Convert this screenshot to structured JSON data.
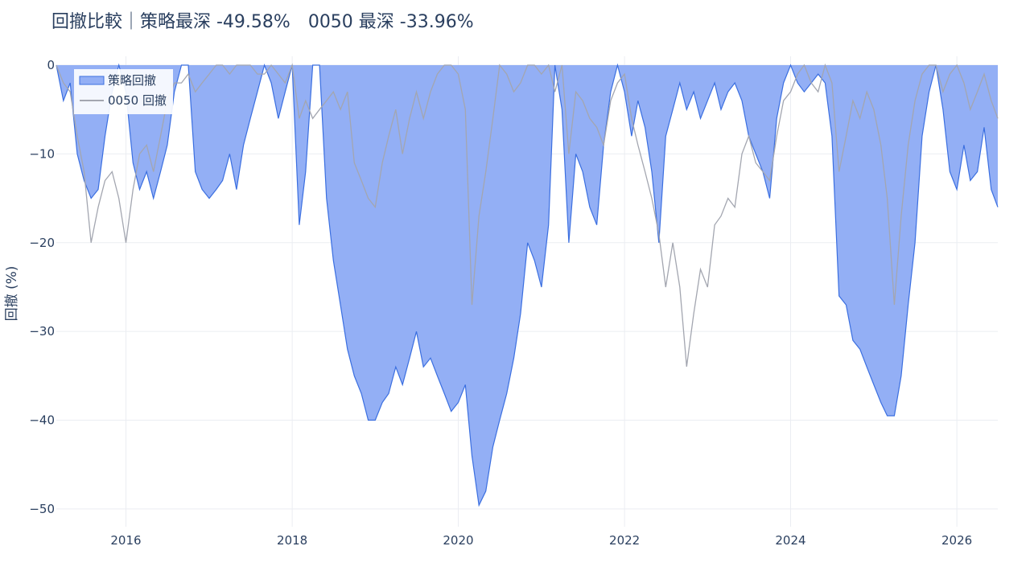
{
  "chart_data": {
    "type": "area",
    "title": "回撤比較｜策略最深 -49.58%　0050 最深 -33.96%",
    "xlabel": "",
    "ylabel": "回撤 (%)",
    "xlim": [
      "2015-03-01",
      "2026-06-30"
    ],
    "ylim": [
      -52,
      1
    ],
    "x_ticks": [
      "2016",
      "2018",
      "2020",
      "2022",
      "2024",
      "2026"
    ],
    "y_ticks": [
      0,
      -10,
      -20,
      -30,
      -40,
      -50
    ],
    "y_tick_labels": [
      "0",
      "−10",
      "−20",
      "−30",
      "−40",
      "−50"
    ],
    "grid": true,
    "legend_position": "top-left",
    "series": [
      {
        "name": "策略回撤",
        "style": "area",
        "color": "#3b6fe0",
        "fill": "#93aff5",
        "points": [
          [
            "2015-03-01",
            0
          ],
          [
            "2015-04-01",
            -4
          ],
          [
            "2015-05-01",
            -2
          ],
          [
            "2015-06-01",
            -10
          ],
          [
            "2015-07-01",
            -13
          ],
          [
            "2015-08-01",
            -15
          ],
          [
            "2015-09-01",
            -14
          ],
          [
            "2015-10-01",
            -8
          ],
          [
            "2015-11-01",
            -3
          ],
          [
            "2015-12-01",
            0
          ],
          [
            "2016-01-01",
            -3
          ],
          [
            "2016-02-01",
            -11
          ],
          [
            "2016-03-01",
            -14
          ],
          [
            "2016-04-01",
            -12
          ],
          [
            "2016-05-01",
            -15
          ],
          [
            "2016-06-01",
            -12
          ],
          [
            "2016-07-01",
            -9
          ],
          [
            "2016-08-01",
            -3
          ],
          [
            "2016-09-01",
            0
          ],
          [
            "2016-10-01",
            0
          ],
          [
            "2016-11-01",
            -12
          ],
          [
            "2016-12-01",
            -14
          ],
          [
            "2017-01-01",
            -15
          ],
          [
            "2017-02-01",
            -14
          ],
          [
            "2017-03-01",
            -13
          ],
          [
            "2017-04-01",
            -10
          ],
          [
            "2017-05-01",
            -14
          ],
          [
            "2017-06-01",
            -9
          ],
          [
            "2017-07-01",
            -6
          ],
          [
            "2017-08-01",
            -3
          ],
          [
            "2017-09-01",
            0
          ],
          [
            "2017-10-01",
            -2
          ],
          [
            "2017-11-01",
            -6
          ],
          [
            "2017-12-01",
            -3
          ],
          [
            "2018-01-01",
            0
          ],
          [
            "2018-02-01",
            -18
          ],
          [
            "2018-03-01",
            -12
          ],
          [
            "2018-04-01",
            0
          ],
          [
            "2018-05-01",
            0
          ],
          [
            "2018-06-01",
            -15
          ],
          [
            "2018-07-01",
            -22
          ],
          [
            "2018-08-01",
            -27
          ],
          [
            "2018-09-01",
            -32
          ],
          [
            "2018-10-01",
            -35
          ],
          [
            "2018-11-01",
            -37
          ],
          [
            "2018-12-01",
            -40
          ],
          [
            "2019-01-01",
            -40
          ],
          [
            "2019-02-01",
            -38
          ],
          [
            "2019-03-01",
            -37
          ],
          [
            "2019-04-01",
            -34
          ],
          [
            "2019-05-01",
            -36
          ],
          [
            "2019-06-01",
            -33
          ],
          [
            "2019-07-01",
            -30
          ],
          [
            "2019-08-01",
            -34
          ],
          [
            "2019-09-01",
            -33
          ],
          [
            "2019-10-01",
            -35
          ],
          [
            "2019-11-01",
            -37
          ],
          [
            "2019-12-01",
            -39
          ],
          [
            "2020-01-01",
            -38
          ],
          [
            "2020-02-01",
            -36
          ],
          [
            "2020-03-01",
            -44
          ],
          [
            "2020-04-01",
            -49.58
          ],
          [
            "2020-05-01",
            -48
          ],
          [
            "2020-06-01",
            -43
          ],
          [
            "2020-07-01",
            -40
          ],
          [
            "2020-08-01",
            -37
          ],
          [
            "2020-09-01",
            -33
          ],
          [
            "2020-10-01",
            -28
          ],
          [
            "2020-11-01",
            -20
          ],
          [
            "2020-12-01",
            -22
          ],
          [
            "2021-01-01",
            -25
          ],
          [
            "2021-02-01",
            -18
          ],
          [
            "2021-03-01",
            0
          ],
          [
            "2021-04-01",
            -5
          ],
          [
            "2021-05-01",
            -20
          ],
          [
            "2021-06-01",
            -10
          ],
          [
            "2021-07-01",
            -12
          ],
          [
            "2021-08-01",
            -16
          ],
          [
            "2021-09-01",
            -18
          ],
          [
            "2021-10-01",
            -9
          ],
          [
            "2021-11-01",
            -3
          ],
          [
            "2021-12-01",
            0
          ],
          [
            "2022-01-01",
            -3
          ],
          [
            "2022-02-01",
            -8
          ],
          [
            "2022-03-01",
            -4
          ],
          [
            "2022-04-01",
            -7
          ],
          [
            "2022-05-01",
            -12
          ],
          [
            "2022-06-01",
            -20
          ],
          [
            "2022-07-01",
            -8
          ],
          [
            "2022-08-01",
            -5
          ],
          [
            "2022-09-01",
            -2
          ],
          [
            "2022-10-01",
            -5
          ],
          [
            "2022-11-01",
            -3
          ],
          [
            "2022-12-01",
            -6
          ],
          [
            "2023-01-01",
            -4
          ],
          [
            "2023-02-01",
            -2
          ],
          [
            "2023-03-01",
            -5
          ],
          [
            "2023-04-01",
            -3
          ],
          [
            "2023-05-01",
            -2
          ],
          [
            "2023-06-01",
            -4
          ],
          [
            "2023-07-01",
            -8
          ],
          [
            "2023-08-01",
            -10
          ],
          [
            "2023-09-01",
            -12
          ],
          [
            "2023-10-01",
            -15
          ],
          [
            "2023-11-01",
            -6
          ],
          [
            "2023-12-01",
            -2
          ],
          [
            "2024-01-01",
            0
          ],
          [
            "2024-02-01",
            -2
          ],
          [
            "2024-03-01",
            -3
          ],
          [
            "2024-04-01",
            -2
          ],
          [
            "2024-05-01",
            -1
          ],
          [
            "2024-06-01",
            -2
          ],
          [
            "2024-07-01",
            -8
          ],
          [
            "2024-08-01",
            -26
          ],
          [
            "2024-09-01",
            -27
          ],
          [
            "2024-10-01",
            -31
          ],
          [
            "2024-11-01",
            -32
          ],
          [
            "2024-12-01",
            -34
          ],
          [
            "2025-01-01",
            -36
          ],
          [
            "2025-02-01",
            -38
          ],
          [
            "2025-03-01",
            -39.5
          ],
          [
            "2025-04-01",
            -39.5
          ],
          [
            "2025-05-01",
            -35
          ],
          [
            "2025-06-01",
            -27
          ],
          [
            "2025-07-01",
            -20
          ],
          [
            "2025-08-01",
            -8
          ],
          [
            "2025-09-01",
            -3
          ],
          [
            "2025-10-01",
            0
          ],
          [
            "2025-11-01",
            -5
          ],
          [
            "2025-12-01",
            -12
          ],
          [
            "2026-01-01",
            -14
          ],
          [
            "2026-02-01",
            -9
          ],
          [
            "2026-03-01",
            -13
          ],
          [
            "2026-04-01",
            -12
          ],
          [
            "2026-05-01",
            -7
          ],
          [
            "2026-06-01",
            -14
          ],
          [
            "2026-06-30",
            -16
          ]
        ]
      },
      {
        "name": "0050 回撤",
        "style": "line",
        "color": "#a3a6b0",
        "points": [
          [
            "2015-03-01",
            0
          ],
          [
            "2015-04-01",
            -2
          ],
          [
            "2015-05-01",
            -3
          ],
          [
            "2015-06-01",
            -8
          ],
          [
            "2015-07-01",
            -12
          ],
          [
            "2015-08-01",
            -20
          ],
          [
            "2015-09-01",
            -16
          ],
          [
            "2015-10-01",
            -13
          ],
          [
            "2015-11-01",
            -12
          ],
          [
            "2015-12-01",
            -15
          ],
          [
            "2016-01-01",
            -20
          ],
          [
            "2016-02-01",
            -14
          ],
          [
            "2016-03-01",
            -10
          ],
          [
            "2016-04-01",
            -9
          ],
          [
            "2016-05-01",
            -12
          ],
          [
            "2016-06-01",
            -8
          ],
          [
            "2016-07-01",
            -4
          ],
          [
            "2016-08-01",
            -2
          ],
          [
            "2016-09-01",
            -2
          ],
          [
            "2016-10-01",
            -1
          ],
          [
            "2016-11-01",
            -3
          ],
          [
            "2016-12-01",
            -2
          ],
          [
            "2017-01-01",
            -1
          ],
          [
            "2017-02-01",
            0
          ],
          [
            "2017-03-01",
            0
          ],
          [
            "2017-04-01",
            -1
          ],
          [
            "2017-05-01",
            0
          ],
          [
            "2017-06-01",
            0
          ],
          [
            "2017-07-01",
            0
          ],
          [
            "2017-08-01",
            -1
          ],
          [
            "2017-09-01",
            -1
          ],
          [
            "2017-10-01",
            0
          ],
          [
            "2017-11-01",
            -1
          ],
          [
            "2017-12-01",
            -2
          ],
          [
            "2018-01-01",
            0
          ],
          [
            "2018-02-01",
            -6
          ],
          [
            "2018-03-01",
            -4
          ],
          [
            "2018-04-01",
            -6
          ],
          [
            "2018-05-01",
            -5
          ],
          [
            "2018-06-01",
            -4
          ],
          [
            "2018-07-01",
            -3
          ],
          [
            "2018-08-01",
            -5
          ],
          [
            "2018-09-01",
            -3
          ],
          [
            "2018-10-01",
            -11
          ],
          [
            "2018-11-01",
            -13
          ],
          [
            "2018-12-01",
            -15
          ],
          [
            "2019-01-01",
            -16
          ],
          [
            "2019-02-01",
            -11
          ],
          [
            "2019-03-01",
            -8
          ],
          [
            "2019-04-01",
            -5
          ],
          [
            "2019-05-01",
            -10
          ],
          [
            "2019-06-01",
            -6
          ],
          [
            "2019-07-01",
            -3
          ],
          [
            "2019-08-01",
            -6
          ],
          [
            "2019-09-01",
            -3
          ],
          [
            "2019-10-01",
            -1
          ],
          [
            "2019-11-01",
            0
          ],
          [
            "2019-12-01",
            0
          ],
          [
            "2020-01-01",
            -1
          ],
          [
            "2020-02-01",
            -5
          ],
          [
            "2020-03-01",
            -27
          ],
          [
            "2020-04-01",
            -17
          ],
          [
            "2020-05-01",
            -12
          ],
          [
            "2020-06-01",
            -6
          ],
          [
            "2020-07-01",
            0
          ],
          [
            "2020-08-01",
            -1
          ],
          [
            "2020-09-01",
            -3
          ],
          [
            "2020-10-01",
            -2
          ],
          [
            "2020-11-01",
            0
          ],
          [
            "2020-12-01",
            0
          ],
          [
            "2021-01-01",
            -1
          ],
          [
            "2021-02-01",
            0
          ],
          [
            "2021-03-01",
            -3
          ],
          [
            "2021-04-01",
            0
          ],
          [
            "2021-05-01",
            -10
          ],
          [
            "2021-06-01",
            -3
          ],
          [
            "2021-07-01",
            -4
          ],
          [
            "2021-08-01",
            -6
          ],
          [
            "2021-09-01",
            -7
          ],
          [
            "2021-10-01",
            -9
          ],
          [
            "2021-11-01",
            -4
          ],
          [
            "2021-12-01",
            -2
          ],
          [
            "2022-01-01",
            -1
          ],
          [
            "2022-02-01",
            -6
          ],
          [
            "2022-03-01",
            -9
          ],
          [
            "2022-04-01",
            -12
          ],
          [
            "2022-05-01",
            -15
          ],
          [
            "2022-06-01",
            -19
          ],
          [
            "2022-07-01",
            -25
          ],
          [
            "2022-08-01",
            -20
          ],
          [
            "2022-09-01",
            -25
          ],
          [
            "2022-10-01",
            -33.96
          ],
          [
            "2022-11-01",
            -28
          ],
          [
            "2022-12-01",
            -23
          ],
          [
            "2023-01-01",
            -25
          ],
          [
            "2023-02-01",
            -18
          ],
          [
            "2023-03-01",
            -17
          ],
          [
            "2023-04-01",
            -15
          ],
          [
            "2023-05-01",
            -16
          ],
          [
            "2023-06-01",
            -10
          ],
          [
            "2023-07-01",
            -8
          ],
          [
            "2023-08-01",
            -11
          ],
          [
            "2023-09-01",
            -12
          ],
          [
            "2023-10-01",
            -13
          ],
          [
            "2023-11-01",
            -8
          ],
          [
            "2023-12-01",
            -4
          ],
          [
            "2024-01-01",
            -3
          ],
          [
            "2024-02-01",
            -1
          ],
          [
            "2024-03-01",
            0
          ],
          [
            "2024-04-01",
            -2
          ],
          [
            "2024-05-01",
            -3
          ],
          [
            "2024-06-01",
            0
          ],
          [
            "2024-07-01",
            -2
          ],
          [
            "2024-08-01",
            -12
          ],
          [
            "2024-09-01",
            -8
          ],
          [
            "2024-10-01",
            -4
          ],
          [
            "2024-11-01",
            -6
          ],
          [
            "2024-12-01",
            -3
          ],
          [
            "2025-01-01",
            -5
          ],
          [
            "2025-02-01",
            -9
          ],
          [
            "2025-03-01",
            -15
          ],
          [
            "2025-04-01",
            -27
          ],
          [
            "2025-05-01",
            -17
          ],
          [
            "2025-06-01",
            -9
          ],
          [
            "2025-07-01",
            -4
          ],
          [
            "2025-08-01",
            -1
          ],
          [
            "2025-09-01",
            0
          ],
          [
            "2025-10-01",
            0
          ],
          [
            "2025-11-01",
            -3
          ],
          [
            "2025-12-01",
            -1
          ],
          [
            "2026-01-01",
            0
          ],
          [
            "2026-02-01",
            -2
          ],
          [
            "2026-03-01",
            -5
          ],
          [
            "2026-04-01",
            -3
          ],
          [
            "2026-05-01",
            -1
          ],
          [
            "2026-06-01",
            -4
          ],
          [
            "2026-06-30",
            -6
          ]
        ]
      }
    ]
  }
}
